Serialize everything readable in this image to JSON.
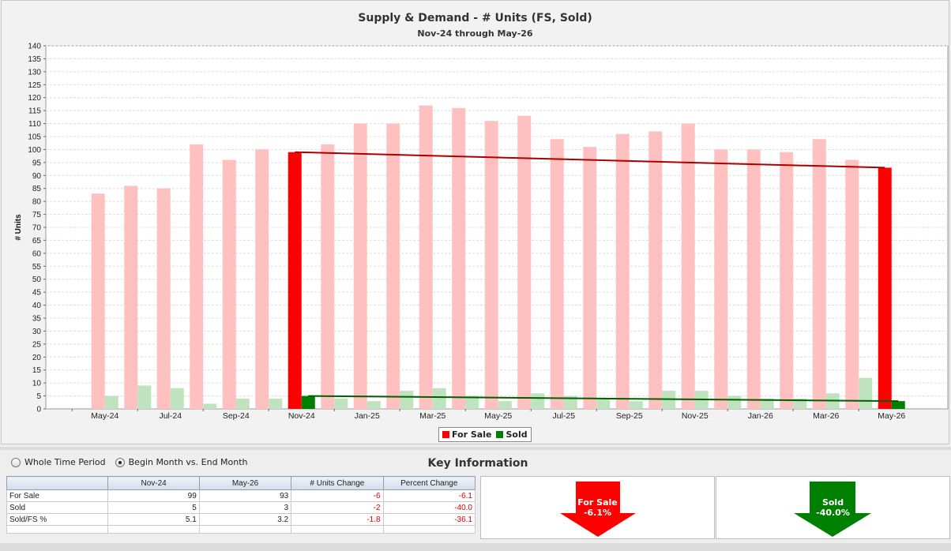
{
  "chart_data": {
    "type": "bar",
    "title": "Supply & Demand - # Units (FS, Sold)",
    "subtitle": "Nov-24 through May-26",
    "xlabel": "",
    "ylabel": "# Units",
    "ylim": [
      0,
      140
    ],
    "yticks": [
      0,
      5,
      10,
      15,
      20,
      25,
      30,
      35,
      40,
      45,
      50,
      55,
      60,
      65,
      70,
      75,
      80,
      85,
      90,
      95,
      100,
      105,
      110,
      115,
      120,
      125,
      130,
      135,
      140
    ],
    "grid": true,
    "legend_position": "bottom-center",
    "categories": [
      "May-24",
      "Jun-24",
      "Jul-24",
      "Aug-24",
      "Sep-24",
      "Oct-24",
      "Nov-24",
      "Dec-24",
      "Jan-25",
      "Feb-25",
      "Mar-25",
      "Apr-25",
      "May-25",
      "Jun-25",
      "Jul-25",
      "Aug-25",
      "Sep-25",
      "Oct-25",
      "Nov-25",
      "Dec-25",
      "Jan-26",
      "Feb-26",
      "Mar-26",
      "Apr-26",
      "May-26"
    ],
    "tick_labels": [
      "May-24",
      "Jul-24",
      "Sep-24",
      "Nov-24",
      "Jan-25",
      "Mar-25",
      "May-25",
      "Jul-25",
      "Sep-25",
      "Nov-25",
      "Jan-26",
      "Mar-26",
      "May-26"
    ],
    "series": [
      {
        "name": "For Sale",
        "color": "#ff0000",
        "faded_color": "#ffc0c0",
        "values": [
          83,
          86,
          85,
          102,
          96,
          100,
          99,
          102,
          110,
          110,
          117,
          116,
          111,
          113,
          104,
          101,
          106,
          107,
          110,
          100,
          100,
          99,
          104,
          96,
          93
        ]
      },
      {
        "name": "Sold",
        "color": "#008000",
        "faded_color": "#bfe3bf",
        "values": [
          5,
          9,
          8,
          2,
          4,
          4,
          5,
          4,
          3,
          7,
          8,
          5,
          3,
          6,
          5,
          4,
          3,
          7,
          7,
          5,
          4,
          4,
          6,
          12,
          3
        ]
      }
    ],
    "highlighted_categories": [
      "Nov-24",
      "May-26"
    ],
    "trend_lines": [
      {
        "series": "For Sale",
        "from": [
          "Nov-24",
          99
        ],
        "to": [
          "May-26",
          93
        ],
        "color": "#aa0000"
      },
      {
        "series": "Sold",
        "from": [
          "Nov-24",
          5
        ],
        "to": [
          "May-26",
          3
        ],
        "color": "#006000"
      }
    ]
  },
  "legend": {
    "items": [
      {
        "label": "For Sale",
        "color": "#ff0000"
      },
      {
        "label": "Sold",
        "color": "#008000"
      }
    ]
  },
  "controls": {
    "option_whole": "Whole Time Period",
    "option_begin_end": "Begin Month vs. End Month",
    "selected": "begin_end"
  },
  "key_info": {
    "title": "Key Information",
    "headers": [
      "",
      "Nov-24",
      "May-26",
      "# Units Change",
      "Percent Change"
    ],
    "rows": [
      {
        "label": "For Sale",
        "start": "99",
        "end": "93",
        "change": "-6",
        "pct": "-6.1"
      },
      {
        "label": "Sold",
        "start": "5",
        "end": "3",
        "change": "-2",
        "pct": "-40.0"
      },
      {
        "label": "Sold/FS %",
        "start": "5.1",
        "end": "3.2",
        "change": "-1.8",
        "pct": "-36.1"
      }
    ]
  },
  "arrows": {
    "for_sale": {
      "label": "For Sale",
      "value": "-6.1%",
      "color": "#ff0000"
    },
    "sold": {
      "label": "Sold",
      "value": "-40.0%",
      "color": "#008000"
    }
  }
}
